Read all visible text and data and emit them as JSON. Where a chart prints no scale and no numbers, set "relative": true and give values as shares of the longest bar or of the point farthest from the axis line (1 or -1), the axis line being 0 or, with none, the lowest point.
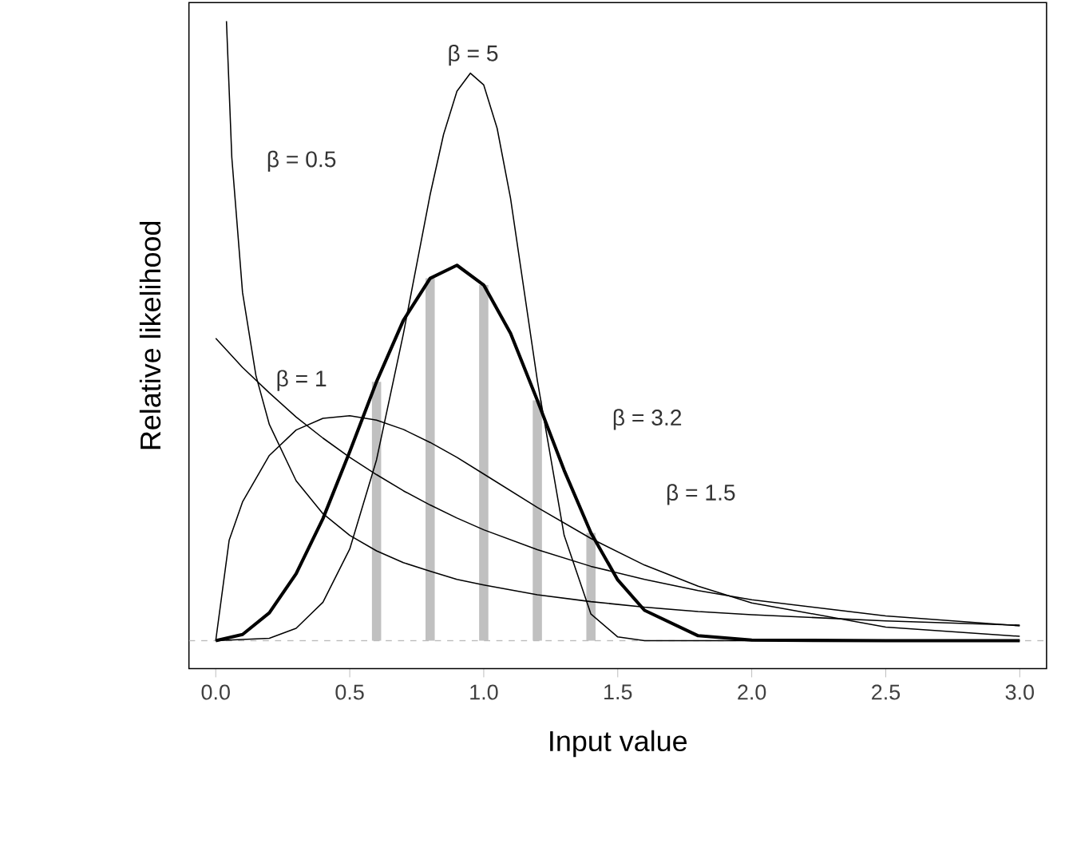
{
  "chart_data": {
    "type": "line",
    "xlabel": "Input value",
    "ylabel": "Relative likelihood",
    "relative": true,
    "tick_labels": "x",
    "marker": "none",
    "line_style": "solid",
    "xlim": [
      -0.1,
      3.1
    ],
    "xticks": [
      {
        "value": 0,
        "label": "0.0"
      },
      {
        "value": 0.5,
        "label": "0.5"
      },
      {
        "value": 1,
        "label": "1.0"
      },
      {
        "value": 1.5,
        "label": "1.5"
      },
      {
        "value": 2,
        "label": "2.0"
      },
      {
        "value": 2.5,
        "label": "2.5"
      },
      {
        "value": 3,
        "label": "3.0"
      }
    ],
    "ref_lines": [
      {
        "axis": "y",
        "value": 0,
        "color": "#bbbbbb",
        "line_style": "dashed"
      }
    ],
    "series": [
      {
        "type": "bar",
        "color": "#c0c0c0",
        "x": [
          0.6,
          0.8,
          1.0,
          1.2,
          1.4
        ],
        "values": [
          0.418,
          0.585,
          0.574,
          0.388,
          0.174
        ]
      },
      {
        "name": "β = 0.5",
        "color": "#000000",
        "x": [
          0.04,
          0.06,
          0.1,
          0.15,
          0.2,
          0.3,
          0.4,
          0.5,
          0.6,
          0.7,
          0.8,
          0.9,
          1.0,
          1.2,
          1.4,
          1.6,
          1.8,
          2.0,
          2.5,
          3.0
        ],
        "values": [
          1.0,
          0.78,
          0.562,
          0.428,
          0.349,
          0.258,
          0.205,
          0.17,
          0.145,
          0.126,
          0.112,
          0.099,
          0.09,
          0.074,
          0.063,
          0.054,
          0.047,
          0.042,
          0.032,
          0.025
        ]
      },
      {
        "name": "β = 1",
        "color": "#000000",
        "x": [
          0,
          0.1,
          0.2,
          0.3,
          0.4,
          0.5,
          0.6,
          0.7,
          0.8,
          0.9,
          1.0,
          1.2,
          1.4,
          1.6,
          1.8,
          2.0,
          2.5,
          3.0
        ],
        "values": [
          0.488,
          0.441,
          0.4,
          0.361,
          0.327,
          0.296,
          0.268,
          0.242,
          0.219,
          0.198,
          0.179,
          0.147,
          0.12,
          0.099,
          0.081,
          0.066,
          0.04,
          0.024
        ]
      },
      {
        "name": "β = 1.5",
        "color": "#000000",
        "x": [
          0,
          0.05,
          0.1,
          0.2,
          0.3,
          0.4,
          0.5,
          0.6,
          0.7,
          0.8,
          0.9,
          1.0,
          1.2,
          1.4,
          1.6,
          1.8,
          2.0,
          2.5,
          3.0
        ],
        "values": [
          0,
          0.162,
          0.224,
          0.299,
          0.34,
          0.359,
          0.363,
          0.356,
          0.341,
          0.32,
          0.296,
          0.269,
          0.215,
          0.165,
          0.122,
          0.088,
          0.061,
          0.022,
          0.007
        ]
      },
      {
        "name": "β = 3.2",
        "color": "#000000",
        "x": [
          0,
          0.1,
          0.2,
          0.3,
          0.4,
          0.5,
          0.6,
          0.7,
          0.8,
          0.9,
          1.0,
          1.1,
          1.2,
          1.3,
          1.4,
          1.5,
          1.6,
          1.8,
          2.0,
          2.5,
          3.0
        ],
        "values": [
          0,
          0.01,
          0.045,
          0.108,
          0.197,
          0.305,
          0.418,
          0.517,
          0.585,
          0.606,
          0.574,
          0.496,
          0.388,
          0.275,
          0.174,
          0.098,
          0.049,
          0.008,
          0.001,
          0,
          0
        ]
      },
      {
        "name": "β = 5",
        "color": "#000000",
        "x": [
          0,
          0.2,
          0.3,
          0.4,
          0.5,
          0.6,
          0.7,
          0.8,
          0.85,
          0.9,
          0.95,
          1.0,
          1.05,
          1.1,
          1.2,
          1.3,
          1.4,
          1.5,
          1.6,
          2.0,
          3.0
        ],
        "values": [
          0,
          0.004,
          0.02,
          0.062,
          0.148,
          0.292,
          0.495,
          0.72,
          0.817,
          0.887,
          0.916,
          0.897,
          0.827,
          0.714,
          0.42,
          0.17,
          0.043,
          0.006,
          0,
          0,
          0
        ]
      }
    ]
  }
}
